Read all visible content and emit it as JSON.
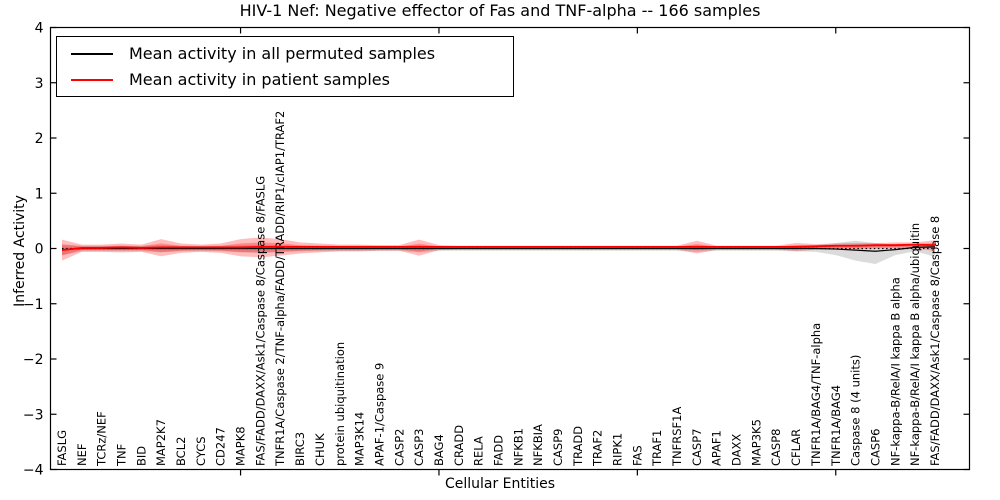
{
  "figure": {
    "title": "HIV-1 Nef: Negative effector of Fas and TNF-alpha -- 166 samples",
    "xlabel": "Cellular Entities",
    "ylabel": "Inferred Activity"
  },
  "legend": {
    "items": [
      {
        "label": "Mean activity in all permuted samples",
        "color": "#000000"
      },
      {
        "label": "Mean activity in patient samples",
        "color": "#ff0000"
      }
    ]
  },
  "chart_data": {
    "type": "line",
    "title": "HIV-1 Nef: Negative effector of Fas and TNF-alpha -- 166 samples",
    "xlabel": "Cellular Entities",
    "ylabel": "Inferred Activity",
    "ylim": [
      -4,
      4
    ],
    "yticks": [
      4,
      3,
      2,
      1,
      0,
      -1,
      -2,
      -3,
      -4
    ],
    "ytick_labels": [
      "4",
      "3",
      "2",
      "1",
      "0",
      "−1",
      "−2",
      "−3",
      "−4"
    ],
    "xtick_category_indexes": [
      9,
      19,
      29,
      39
    ],
    "grid": false,
    "legend_position": "upper left",
    "zero_line": {
      "y": 0,
      "style": "dotted",
      "color": "#000000"
    },
    "categories": [
      "FASLG",
      "NEF",
      "TCRz/NEF",
      "TNF",
      "BID",
      "MAP2K7",
      "BCL2",
      "CYCS",
      "CD247",
      "MAPK8",
      "FAS/FADD/DAXX/Ask1/Caspase 8/Caspase 8/FASLG",
      "TNFR1A/Caspase 2/TNF-alpha/FADD/TRADD/RIP1/cIAP1/TRAF2",
      "BIRC3",
      "CHUK",
      "protein ubiquitination",
      "MAP3K14",
      "APAF-1/Caspase 9",
      "CASP2",
      "CASP3",
      "BAG4",
      "CRADD",
      "RELA",
      "FADD",
      "NFKB1",
      "NFKBIA",
      "CASP9",
      "TRADD",
      "TRAF2",
      "RIPK1",
      "FAS",
      "TRAF1",
      "TNFRSF1A",
      "CASP7",
      "APAF1",
      "DAXX",
      "MAP3K5",
      "CASP8",
      "CFLAR",
      "TNFR1A/BAG4/TNF-alpha",
      "TNFR1A/BAG4",
      "Caspase 8 (4 units)",
      "CASP6",
      "NF-kappa-B/RelA/I kappa B alpha",
      "NF-kappa-B/RelA/I kappa B alpha/ubiquitin",
      "FAS/FADD/DAXX/Ask1/Caspase 8/Caspase 8"
    ],
    "series": [
      {
        "name": "Permuted samples spread",
        "type": "band",
        "color": "#909090",
        "opacity": 0.32,
        "inner_band": false,
        "upper": [
          0.08,
          0.05,
          0.05,
          0.05,
          0.05,
          0.06,
          0.05,
          0.05,
          0.05,
          0.06,
          0.07,
          0.06,
          0.05,
          0.05,
          0.05,
          0.05,
          0.05,
          0.05,
          0.06,
          0.04,
          0.04,
          0.04,
          0.04,
          0.04,
          0.04,
          0.04,
          0.04,
          0.04,
          0.04,
          0.04,
          0.04,
          0.04,
          0.06,
          0.04,
          0.04,
          0.04,
          0.04,
          0.05,
          0.06,
          0.1,
          0.14,
          0.1,
          0.07,
          0.05,
          0.07
        ],
        "lower": [
          -0.12,
          -0.05,
          -0.05,
          -0.05,
          -0.05,
          -0.07,
          -0.05,
          -0.05,
          -0.05,
          -0.07,
          -0.08,
          -0.07,
          -0.05,
          -0.05,
          -0.05,
          -0.05,
          -0.04,
          -0.04,
          -0.07,
          -0.04,
          -0.04,
          -0.04,
          -0.04,
          -0.04,
          -0.04,
          -0.04,
          -0.04,
          -0.04,
          -0.04,
          -0.04,
          -0.04,
          -0.04,
          -0.06,
          -0.04,
          -0.04,
          -0.04,
          -0.04,
          -0.05,
          -0.06,
          -0.12,
          -0.22,
          -0.28,
          -0.12,
          -0.05,
          -0.15
        ]
      },
      {
        "name": "Patient samples spread",
        "type": "band",
        "color": "#ff0000",
        "opacity": 0.26,
        "inner_band": true,
        "upper": [
          0.16,
          0.07,
          0.07,
          0.09,
          0.07,
          0.17,
          0.09,
          0.07,
          0.09,
          0.17,
          0.2,
          0.17,
          0.11,
          0.09,
          0.07,
          0.07,
          0.06,
          0.06,
          0.16,
          0.06,
          0.05,
          0.05,
          0.05,
          0.05,
          0.05,
          0.05,
          0.05,
          0.05,
          0.05,
          0.05,
          0.05,
          0.05,
          0.14,
          0.05,
          0.05,
          0.05,
          0.05,
          0.1,
          0.08,
          0.09,
          0.1,
          0.1,
          0.11,
          0.11,
          0.15
        ],
        "lower": [
          -0.22,
          -0.06,
          -0.06,
          -0.07,
          -0.06,
          -0.14,
          -0.08,
          -0.06,
          -0.08,
          -0.14,
          -0.16,
          -0.13,
          -0.09,
          -0.07,
          -0.05,
          -0.05,
          -0.04,
          -0.04,
          -0.13,
          -0.03,
          -0.02,
          -0.02,
          -0.02,
          -0.02,
          -0.02,
          -0.02,
          -0.02,
          -0.02,
          -0.02,
          -0.02,
          -0.02,
          -0.02,
          -0.09,
          -0.02,
          -0.02,
          -0.02,
          -0.02,
          -0.05,
          -0.02,
          -0.01,
          -0.01,
          0.0,
          0.0,
          0.01,
          -0.05
        ]
      },
      {
        "name": "Mean activity in all permuted samples",
        "type": "line",
        "color": "#000000",
        "width": 1.2,
        "values": [
          -0.02,
          0,
          0,
          0,
          0,
          0,
          0,
          0,
          0,
          0,
          0,
          0,
          0,
          0,
          0,
          0,
          0,
          0,
          0,
          0,
          0,
          0,
          0,
          0,
          0,
          0,
          0,
          0,
          0,
          0,
          0,
          0,
          0,
          0,
          0,
          0,
          0,
          0,
          0,
          -0.01,
          -0.03,
          -0.05,
          -0.02,
          0.02,
          0.03
        ]
      },
      {
        "name": "Mean activity in patient samples",
        "type": "line",
        "color": "#ff0000",
        "width": 1.8,
        "values": [
          -0.03,
          0.01,
          0.01,
          0.02,
          0.01,
          0.02,
          0.02,
          0.02,
          0.02,
          0.02,
          0.03,
          0.03,
          0.03,
          0.03,
          0.03,
          0.03,
          0.03,
          0.03,
          0.03,
          0.03,
          0.03,
          0.03,
          0.03,
          0.03,
          0.03,
          0.03,
          0.03,
          0.03,
          0.03,
          0.03,
          0.03,
          0.03,
          0.03,
          0.03,
          0.03,
          0.03,
          0.03,
          0.03,
          0.04,
          0.05,
          0.05,
          0.06,
          0.06,
          0.07,
          0.06
        ]
      }
    ]
  }
}
